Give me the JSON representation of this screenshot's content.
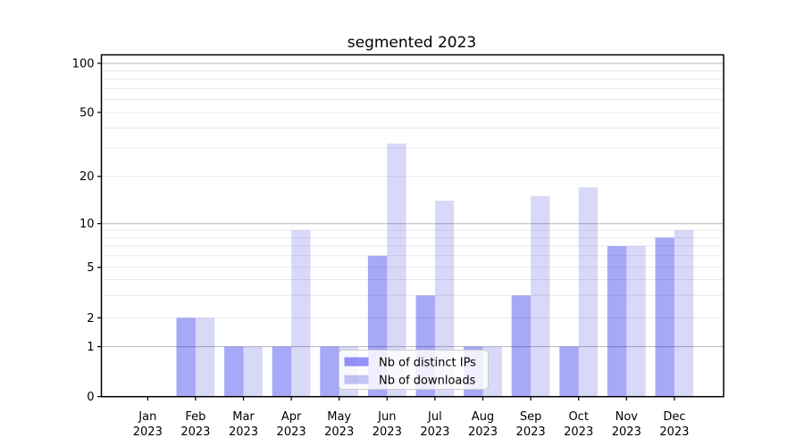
{
  "chart_data": {
    "type": "bar",
    "title": "segmented 2023",
    "months": [
      "Jan",
      "Feb",
      "Mar",
      "Apr",
      "May",
      "Jun",
      "Jul",
      "Aug",
      "Sep",
      "Oct",
      "Nov",
      "Dec"
    ],
    "year_label": "2023",
    "series": [
      {
        "name": "Nb of distinct IPs",
        "color": "#0606eb",
        "alpha": 0.35,
        "values": [
          0,
          2,
          1,
          1,
          1,
          6,
          3,
          1,
          3,
          1,
          7,
          8
        ]
      },
      {
        "name": "Nb of downloads",
        "color": "#0b0bd9",
        "alpha": 0.16,
        "values": [
          0,
          2,
          1,
          9,
          1,
          32,
          14,
          1,
          15,
          17,
          7,
          9
        ]
      }
    ],
    "y_axis": {
      "scale": "symlog",
      "tick_labels": [
        "0",
        "1",
        "2",
        "5",
        "10",
        "20",
        "50",
        "100"
      ],
      "ticks": [
        0,
        1,
        2,
        5,
        10,
        20,
        50,
        100
      ],
      "major_gridlines": [
        1,
        10,
        100
      ],
      "minor_gridlines": [
        2,
        3,
        4,
        5,
        6,
        7,
        8,
        9,
        20,
        30,
        40,
        50,
        60,
        70,
        80,
        90
      ],
      "major_grid_color": "#b8b8b8",
      "minor_grid_color": "#e8e8e8",
      "ylim": [
        0,
        120
      ]
    },
    "legend": {
      "position": "lower center-left",
      "bg_color": "#ffffff",
      "border_color": "#cccccc"
    },
    "grid": true,
    "background": "#ffffff",
    "spine_color": "#000000"
  }
}
